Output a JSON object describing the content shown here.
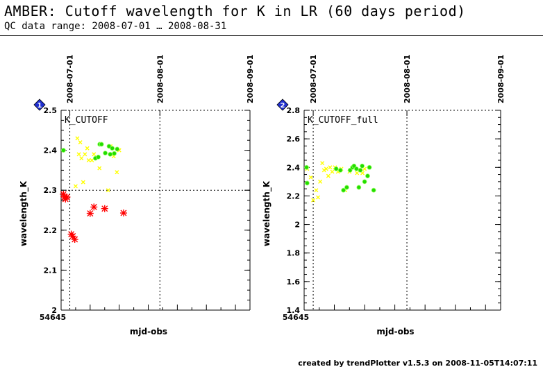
{
  "header": {
    "title": "AMBER: Cutoff wavelength for K in LR (60 days period)",
    "subtitle": "QC data range: 2008-07-01 … 2008-08-31"
  },
  "footer": {
    "text": "created by trendPlotter v1.5.3 on 2008-11-05T14:07:11"
  },
  "colors": {
    "red": "#ff0000",
    "yellow": "#ffff00",
    "green": "#22dd00",
    "badge": "#1f2fd0"
  },
  "chart_data": [
    {
      "type": "scatter",
      "badge": "1",
      "title": "K_CUTOFF",
      "xlabel": "mjd-obs",
      "ylabel": "wavelength_K",
      "xlim": [
        54645,
        54710
      ],
      "ylim": [
        2.0,
        2.5
      ],
      "x_first_tick_label": "54645",
      "yticks": [
        2,
        2.1,
        2.2,
        2.3,
        2.4,
        2.5
      ],
      "ytick_labels": [
        "2",
        "2.1",
        "2.2",
        "2.3",
        "2.4",
        "2.5"
      ],
      "date_ticks": [
        {
          "label": "2008-07-01",
          "x": 54648
        },
        {
          "label": "2008-08-01",
          "x": 54679
        },
        {
          "label": "2008-09-01",
          "x": 54710
        }
      ],
      "reference_line": 2.3,
      "series": [
        {
          "marker": "asterisk",
          "color": "red",
          "points": [
            [
              54645.8,
              2.29
            ],
            [
              54646.2,
              2.283
            ],
            [
              54646.5,
              2.278
            ],
            [
              54647.0,
              2.283
            ],
            [
              54648.5,
              2.19
            ],
            [
              54649.0,
              2.185
            ],
            [
              54649.7,
              2.177
            ],
            [
              54655.0,
              2.242
            ],
            [
              54656.3,
              2.258
            ],
            [
              54660.0,
              2.254
            ],
            [
              54666.5,
              2.243
            ]
          ]
        },
        {
          "marker": "x",
          "color": "yellow",
          "points": [
            [
              54650.0,
              2.31
            ],
            [
              54650.6,
              2.43
            ],
            [
              54651.1,
              2.39
            ],
            [
              54651.6,
              2.42
            ],
            [
              54652.0,
              2.38
            ],
            [
              54652.6,
              2.32
            ],
            [
              54653.2,
              2.39
            ],
            [
              54654.0,
              2.405
            ],
            [
              54654.5,
              2.375
            ],
            [
              54655.6,
              2.375
            ],
            [
              54656.3,
              2.39
            ],
            [
              54658.2,
              2.355
            ],
            [
              54661.2,
              2.3
            ],
            [
              54662.0,
              2.41
            ],
            [
              54663.1,
              2.385
            ],
            [
              54664.2,
              2.345
            ],
            [
              54665.0,
              2.4
            ]
          ]
        },
        {
          "marker": "circle",
          "color": "green",
          "points": [
            [
              54645.8,
              2.4
            ],
            [
              54656.8,
              2.38
            ],
            [
              54657.8,
              2.383
            ],
            [
              54658.3,
              2.415
            ],
            [
              54658.9,
              2.415
            ],
            [
              54660.2,
              2.393
            ],
            [
              54661.5,
              2.41
            ],
            [
              54661.9,
              2.39
            ],
            [
              54662.6,
              2.405
            ],
            [
              54663.3,
              2.392
            ],
            [
              54664.3,
              2.403
            ]
          ]
        }
      ]
    },
    {
      "type": "scatter",
      "badge": "2",
      "title": "K_CUTOFF_full",
      "xlabel": "mjd-obs",
      "ylabel": "wavelength_K",
      "xlim": [
        54645,
        54710
      ],
      "ylim": [
        1.4,
        2.8
      ],
      "x_first_tick_label": "54645",
      "yticks": [
        1.4,
        1.6,
        1.8,
        2,
        2.2,
        2.4,
        2.6,
        2.8
      ],
      "ytick_labels": [
        "1.4",
        "1.6",
        "1.8",
        "2",
        "2.2",
        "2.4",
        "2.6",
        "2.8"
      ],
      "date_ticks": [
        {
          "label": "2008-07-01",
          "x": 54648
        },
        {
          "label": "2008-08-01",
          "x": 54679
        },
        {
          "label": "2008-09-01",
          "x": 54710
        }
      ],
      "reference_line": null,
      "series": [
        {
          "marker": "x",
          "color": "yellow",
          "points": [
            [
              54646.0,
              2.39
            ],
            [
              54647.2,
              2.33
            ],
            [
              54648.0,
              2.17
            ],
            [
              54649.0,
              2.24
            ],
            [
              54649.6,
              2.19
            ],
            [
              54650.3,
              2.3
            ],
            [
              54651.0,
              2.43
            ],
            [
              54651.6,
              2.38
            ],
            [
              54652.3,
              2.39
            ],
            [
              54653.0,
              2.34
            ],
            [
              54653.6,
              2.4
            ],
            [
              54654.3,
              2.37
            ],
            [
              54655.2,
              2.4
            ],
            [
              54656.2,
              2.37
            ],
            [
              54657.3,
              2.39
            ],
            [
              54658.6,
              2.24
            ],
            [
              54660.0,
              2.37
            ],
            [
              54662.5,
              2.36
            ],
            [
              54664.3,
              2.36
            ],
            [
              54665.0,
              2.39
            ]
          ]
        },
        {
          "marker": "circle",
          "color": "green",
          "points": [
            [
              54645.8,
              2.4
            ],
            [
              54646.0,
              2.29
            ],
            [
              54655.6,
              2.39
            ],
            [
              54657.0,
              2.38
            ],
            [
              54658.0,
              2.24
            ],
            [
              54659.1,
              2.26
            ],
            [
              54660.2,
              2.38
            ],
            [
              54661.0,
              2.4
            ],
            [
              54661.5,
              2.41
            ],
            [
              54662.3,
              2.39
            ],
            [
              54663.1,
              2.26
            ],
            [
              54663.6,
              2.38
            ],
            [
              54664.2,
              2.41
            ],
            [
              54665.0,
              2.3
            ],
            [
              54666.0,
              2.34
            ],
            [
              54666.6,
              2.4
            ],
            [
              54668.0,
              2.24
            ]
          ]
        }
      ]
    }
  ]
}
